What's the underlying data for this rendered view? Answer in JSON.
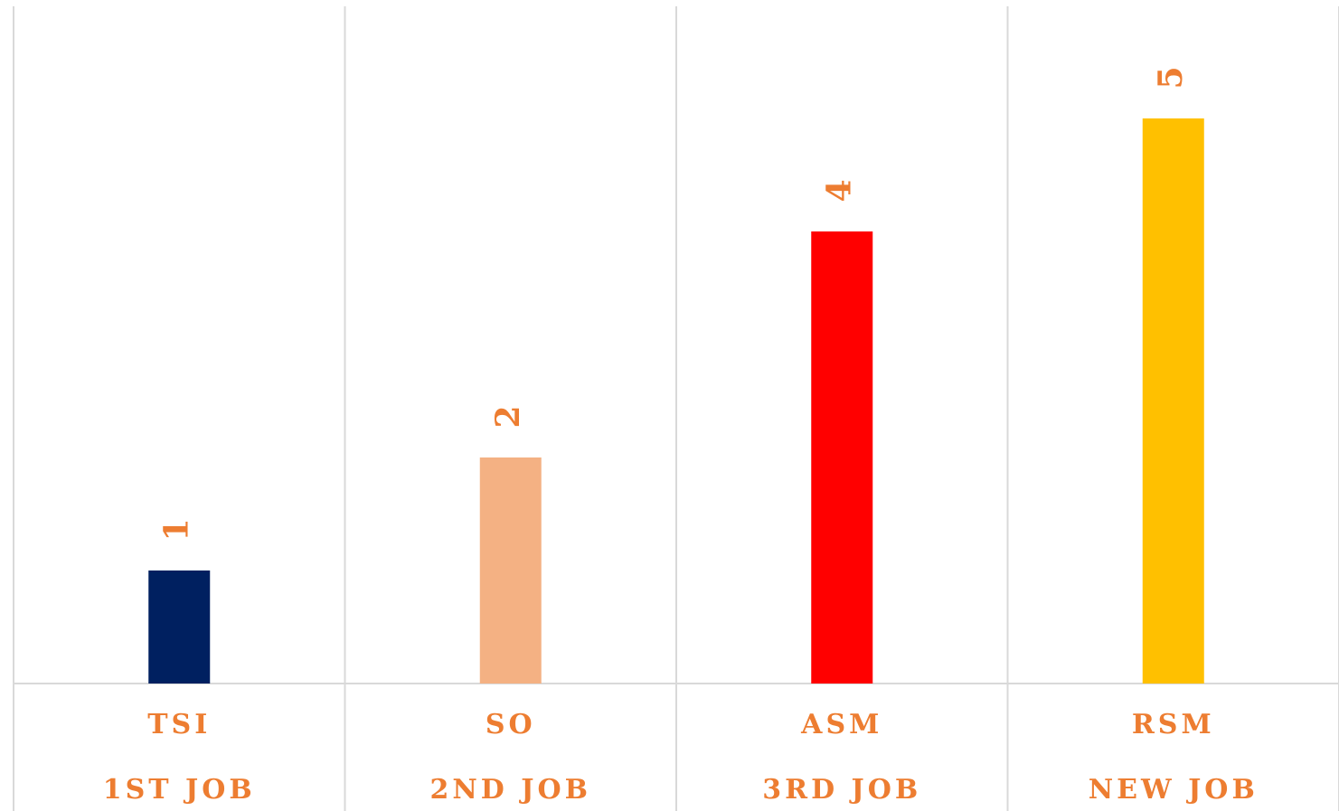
{
  "chart_data": {
    "type": "bar",
    "categories": [
      "TSI",
      "SO",
      "ASM",
      "RSM"
    ],
    "subcategories": [
      "1ST JOB",
      "2ND JOB",
      "3RD JOB",
      "NEW JOB"
    ],
    "values": [
      1,
      2,
      4,
      5
    ],
    "colors": [
      "#002060",
      "#f4b183",
      "#ff0000",
      "#ffc000"
    ],
    "label_color": "#ed7d31",
    "ylim": [
      0,
      6
    ]
  }
}
